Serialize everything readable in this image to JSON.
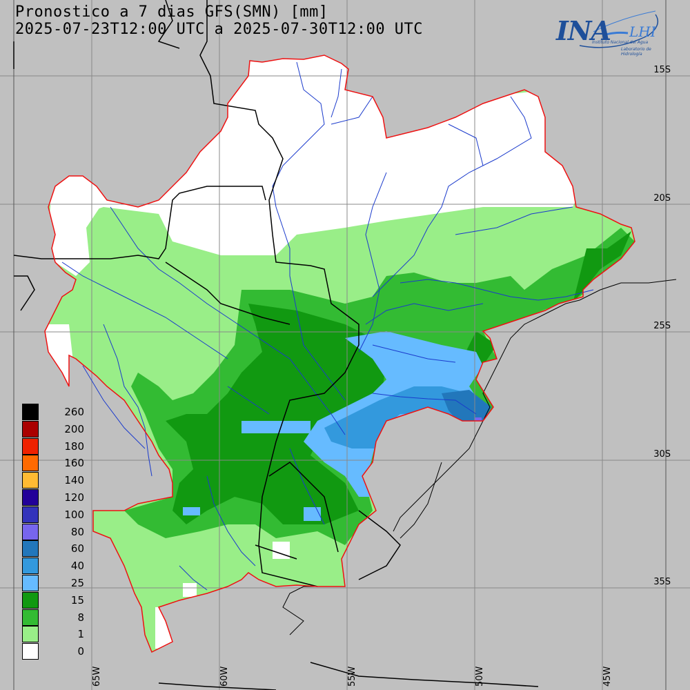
{
  "map": {
    "title_line1": "Pronostico a 7 dias GFS(SMN) [mm]",
    "title_line2": "2025-07-23T12:00 UTC a 2025-07-30T12:00 UTC",
    "lat_labels": [
      "15S",
      "20S",
      "25S",
      "30S",
      "35S"
    ],
    "lon_labels": [
      "65W",
      "60W",
      "55W",
      "50W",
      "45W"
    ],
    "logo": {
      "main": "INA",
      "secondary": "LHI",
      "subtitle1": "Instituto Nacional del Agua",
      "subtitle2": "Laboratorio de Hidrología"
    }
  },
  "legend": {
    "levels": [
      {
        "label": "260",
        "color": "#000000"
      },
      {
        "label": "200",
        "color": "#aa0000"
      },
      {
        "label": "180",
        "color": "#ee2200"
      },
      {
        "label": "160",
        "color": "#ff6a00"
      },
      {
        "label": "140",
        "color": "#ffbb33"
      },
      {
        "label": "120",
        "color": "#220099"
      },
      {
        "label": "100",
        "color": "#3333bb"
      },
      {
        "label": "80",
        "color": "#7766ee"
      },
      {
        "label": "60",
        "color": "#2277bb"
      },
      {
        "label": "40",
        "color": "#3399dd"
      },
      {
        "label": "25",
        "color": "#66bbff"
      },
      {
        "label": "15",
        "color": "#119911"
      },
      {
        "label": "8",
        "color": "#33bb33"
      },
      {
        "label": "1",
        "color": "#99ee88"
      },
      {
        "label": "0",
        "color": "#ffffff"
      }
    ]
  }
}
